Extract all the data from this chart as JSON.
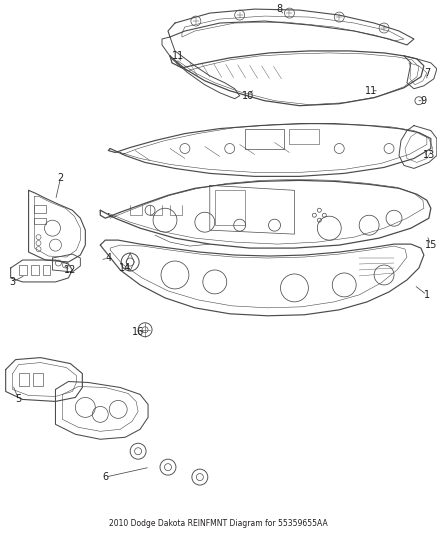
{
  "title": "2010 Dodge Dakota REINFMNT Diagram for 55359655AA",
  "background_color": "#ffffff",
  "text_color": "#231f20",
  "line_color": "#4a4a4a",
  "fig_width": 4.38,
  "fig_height": 5.33,
  "dpi": 100,
  "label_fs": 7.0,
  "title_fs": 5.5
}
